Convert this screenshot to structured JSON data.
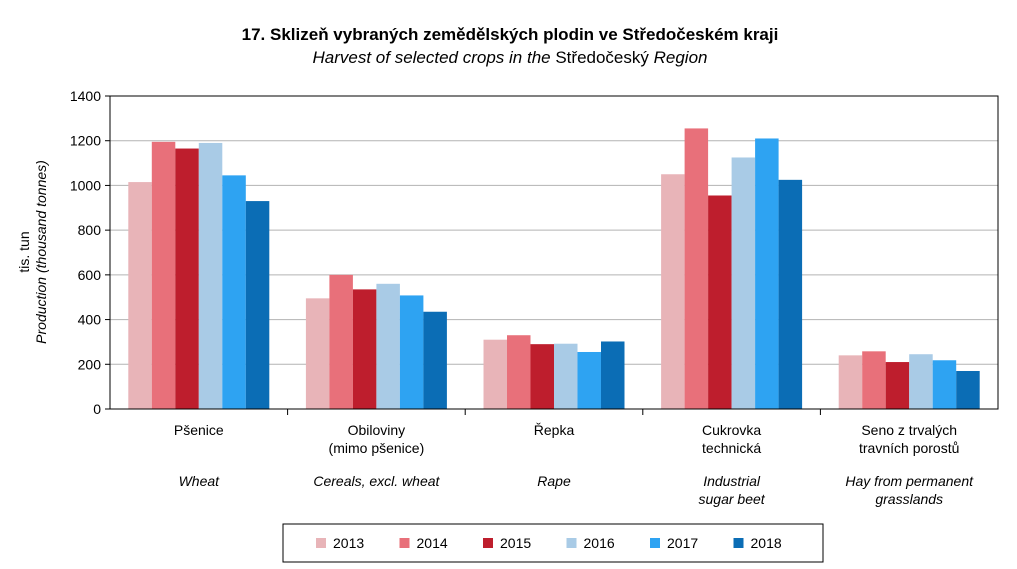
{
  "chart_data": {
    "type": "bar",
    "title": "17. Sklizeň vybraných zemědělských plodin ve Středočeském kraji",
    "subtitle_parts": {
      "part1": "Harvest of selected crops in the ",
      "part2": "Středočeský",
      "part3": " Region"
    },
    "ylabel": "tis. tun",
    "ylabel_en": "Production (thousand tonnes)",
    "ylim": [
      0,
      1400
    ],
    "yticks": [
      "0",
      "200",
      "400",
      "600",
      "800",
      "1000",
      "1200",
      "1400"
    ],
    "grid": true,
    "legend_position": "bottom",
    "categories": [
      {
        "cz": [
          "Pšenice"
        ],
        "en": [
          "Wheat"
        ]
      },
      {
        "cz": [
          "Obiloviny",
          "(mimo pšenice)"
        ],
        "en": [
          "Cereals, excl. wheat"
        ]
      },
      {
        "cz": [
          "Řepka"
        ],
        "en": [
          "Rape"
        ]
      },
      {
        "cz": [
          "Cukrovka",
          "technická"
        ],
        "en": [
          "Industrial",
          "sugar beet"
        ]
      },
      {
        "cz": [
          "Seno z trvalých",
          "travních porostů"
        ],
        "en": [
          "Hay from permanent",
          "grasslands"
        ]
      }
    ],
    "series": [
      {
        "name": "2013",
        "color": "#e8b4b8",
        "values": [
          1015,
          495,
          310,
          1050,
          240
        ]
      },
      {
        "name": "2014",
        "color": "#e8707a",
        "values": [
          1195,
          600,
          330,
          1255,
          258
        ]
      },
      {
        "name": "2015",
        "color": "#be1e2d",
        "values": [
          1165,
          535,
          290,
          955,
          210
        ]
      },
      {
        "name": "2016",
        "color": "#a9cbe6",
        "values": [
          1190,
          560,
          292,
          1125,
          245
        ]
      },
      {
        "name": "2017",
        "color": "#2ea3f2",
        "values": [
          1045,
          508,
          255,
          1210,
          218
        ]
      },
      {
        "name": "2018",
        "color": "#0b6db5",
        "values": [
          930,
          435,
          302,
          1025,
          170
        ]
      }
    ]
  }
}
